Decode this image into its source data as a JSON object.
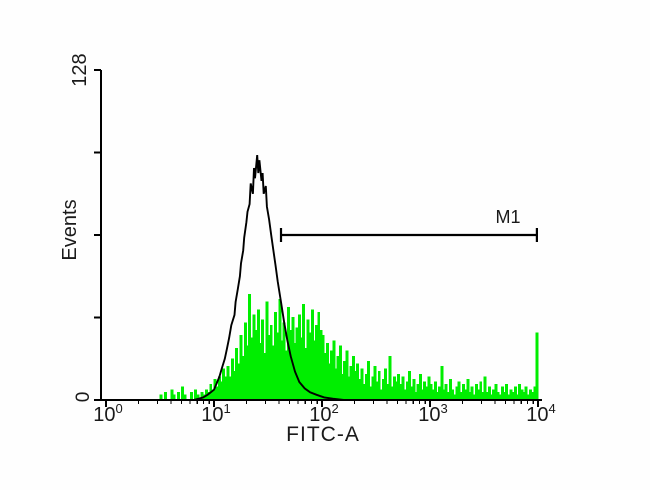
{
  "figure": {
    "kind": "flow-cytometry-histogram",
    "background_color": "#fefefe"
  },
  "colors": {
    "axis": "#000000",
    "control_curve": "#000000",
    "stained_fill": "#00ee00",
    "marker": "#000000",
    "text": "#1a1a1a"
  },
  "chart_data": {
    "type": "area",
    "subtype": "flow-cytometry-overlay-histogram",
    "title": "",
    "xlabel": "FITC-A",
    "ylabel": "Events",
    "x_axis": {
      "scale": "log10",
      "min_exponent": 0,
      "max_exponent": 4,
      "tick_labels": [
        {
          "base": "10",
          "exp": "0"
        },
        {
          "base": "10",
          "exp": "1"
        },
        {
          "base": "10",
          "exp": "2"
        },
        {
          "base": "10",
          "exp": "3"
        },
        {
          "base": "10",
          "exp": "4"
        }
      ],
      "minor_ticks": "log-decades-2-to-9"
    },
    "y_axis": {
      "min": 0,
      "max": 128,
      "tick_values": [
        0,
        32,
        64,
        96,
        128
      ],
      "min_label": "0",
      "max_label": "128"
    },
    "marker": {
      "label": "M1",
      "from_decade": 1.62,
      "to_decade": 3.99,
      "level_events": 64
    },
    "series": [
      {
        "name": "control-black-outline",
        "style": "line",
        "color": "#000000",
        "points": [
          [
            0.81,
            0
          ],
          [
            0.86,
            0.5
          ],
          [
            0.9,
            1
          ],
          [
            0.94,
            2
          ],
          [
            0.97,
            3
          ],
          [
            1.0,
            4
          ],
          [
            1.02,
            6
          ],
          [
            1.05,
            9
          ],
          [
            1.07,
            12
          ],
          [
            1.1,
            16
          ],
          [
            1.12,
            20
          ],
          [
            1.14,
            24
          ],
          [
            1.16,
            29
          ],
          [
            1.19,
            33
          ],
          [
            1.2,
            38
          ],
          [
            1.22,
            43
          ],
          [
            1.24,
            48
          ],
          [
            1.25,
            53
          ],
          [
            1.27,
            58
          ],
          [
            1.28,
            63
          ],
          [
            1.3,
            69
          ],
          [
            1.31,
            73
          ],
          [
            1.33,
            76
          ],
          [
            1.34,
            84
          ],
          [
            1.36,
            80
          ],
          [
            1.37,
            90
          ],
          [
            1.38,
            86
          ],
          [
            1.4,
            95
          ],
          [
            1.41,
            88
          ],
          [
            1.42,
            93
          ],
          [
            1.44,
            85
          ],
          [
            1.45,
            88
          ],
          [
            1.46,
            80
          ],
          [
            1.48,
            83
          ],
          [
            1.49,
            75
          ],
          [
            1.51,
            70
          ],
          [
            1.53,
            64
          ],
          [
            1.55,
            58
          ],
          [
            1.57,
            52
          ],
          [
            1.59,
            46
          ],
          [
            1.62,
            38
          ],
          [
            1.65,
            30
          ],
          [
            1.68,
            23
          ],
          [
            1.71,
            17
          ],
          [
            1.75,
            11
          ],
          [
            1.79,
            7
          ],
          [
            1.84,
            4.5
          ],
          [
            1.89,
            3
          ],
          [
            1.95,
            2
          ],
          [
            2.02,
            1
          ],
          [
            2.1,
            0.5
          ],
          [
            2.2,
            0
          ]
        ]
      },
      {
        "name": "stained-green-histogram",
        "style": "filled-bars",
        "color": "#00ee00",
        "start_decade": 0.5,
        "step_decade": 0.02,
        "values": [
          2,
          0,
          3,
          0,
          0,
          4,
          2,
          0,
          3,
          0,
          5,
          2,
          0,
          0,
          3,
          0,
          4,
          2,
          0,
          3,
          2,
          4,
          3,
          6,
          4,
          8,
          5,
          9,
          7,
          12,
          9,
          13,
          9,
          16,
          11,
          20,
          14,
          25,
          17,
          30,
          21,
          41,
          24,
          33,
          27,
          35,
          22,
          31,
          18,
          38,
          25,
          29,
          21,
          34,
          26,
          39,
          23,
          30,
          19,
          36,
          27,
          32,
          22,
          28,
          33,
          24,
          37,
          20,
          31,
          26,
          35,
          23,
          29,
          34,
          27,
          25,
          18,
          22,
          14,
          19,
          23,
          12,
          17,
          21,
          10,
          15,
          19,
          9,
          13,
          17,
          11,
          14,
          8,
          12,
          6,
          10,
          15,
          5,
          9,
          13,
          7,
          11,
          4,
          8,
          12,
          6,
          17,
          5,
          9,
          7,
          10,
          6,
          9,
          4,
          7,
          11,
          5,
          8,
          3,
          6,
          10,
          4,
          7,
          5,
          9,
          6,
          4,
          7,
          3,
          5,
          13,
          4,
          6,
          3,
          8,
          4,
          2,
          5,
          7,
          3,
          6,
          4,
          8,
          3,
          5,
          2,
          6,
          4,
          7,
          3,
          9,
          3,
          5,
          2,
          4,
          6,
          3,
          2,
          5,
          3,
          6,
          2,
          4,
          3,
          5,
          2,
          6,
          4,
          3,
          5,
          2,
          4,
          3,
          5,
          26
        ]
      }
    ]
  }
}
